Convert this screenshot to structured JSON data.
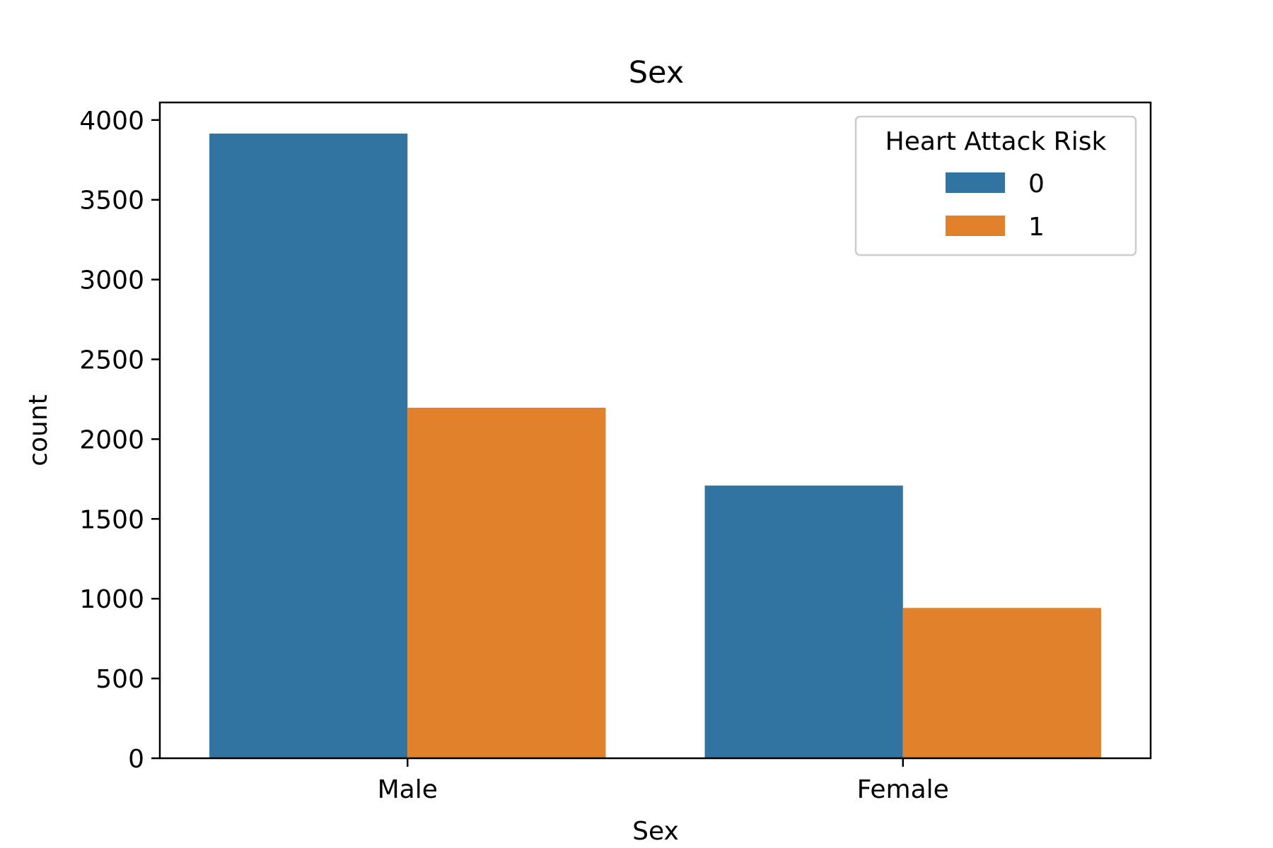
{
  "chart_data": {
    "type": "bar",
    "title": "Sex",
    "xlabel": "Sex",
    "ylabel": "count",
    "categories": [
      "Male",
      "Female"
    ],
    "series": [
      {
        "name": "0",
        "values": [
          3915,
          1709
        ],
        "color": "#3274a1"
      },
      {
        "name": "1",
        "values": [
          2197,
          942
        ],
        "color": "#e1812c"
      }
    ],
    "ylim": [
      0,
      4110
    ],
    "yticks": [
      0,
      500,
      1000,
      1500,
      2000,
      2500,
      3000,
      3500,
      4000
    ],
    "grid": false,
    "legend": {
      "title": "Heart Attack Risk",
      "position": "top-right"
    }
  }
}
